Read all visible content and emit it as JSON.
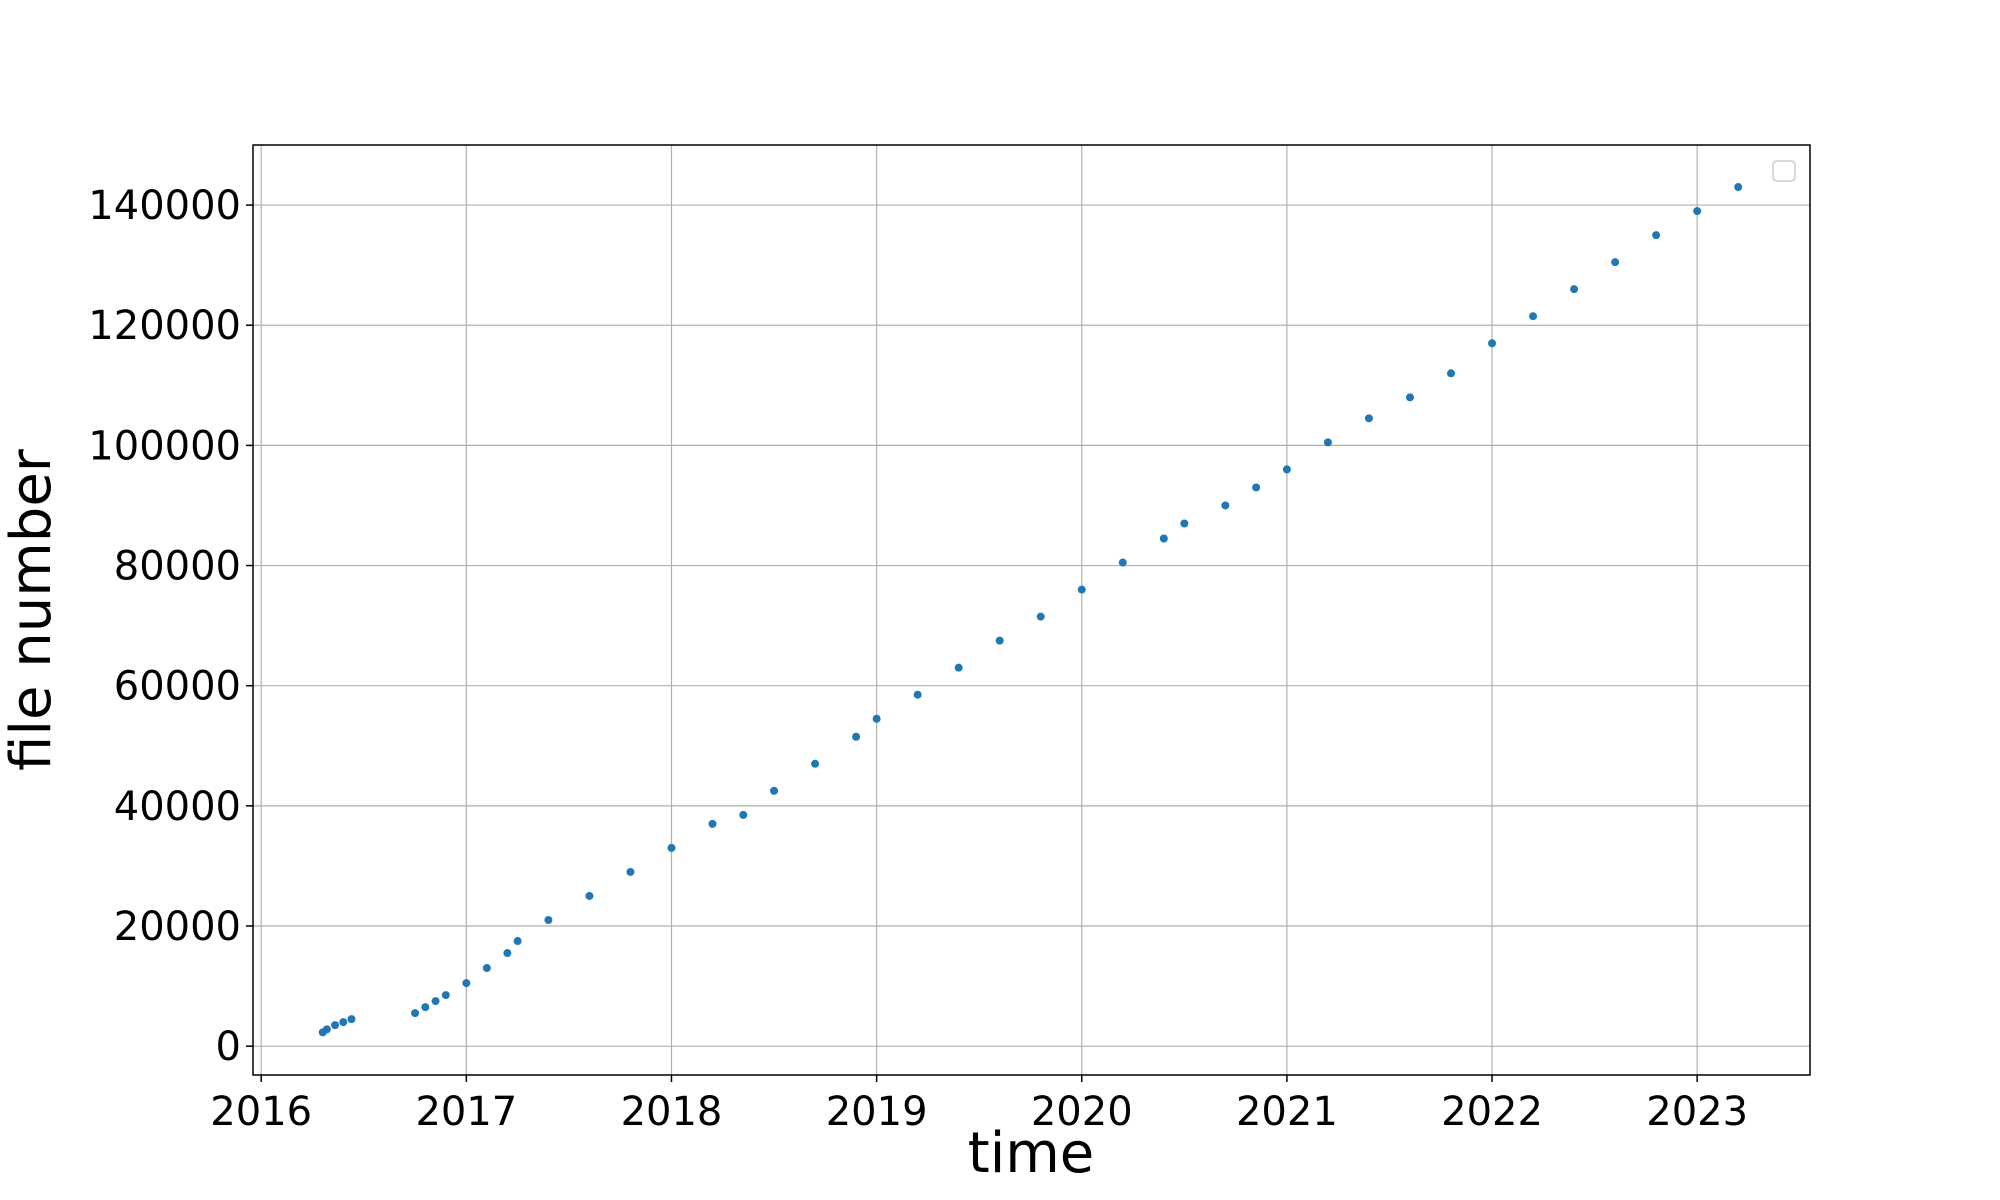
{
  "chart_data": {
    "type": "scatter",
    "title": "",
    "xlabel": "time",
    "ylabel": "file number",
    "x_tick_labels": [
      "2016",
      "2017",
      "2018",
      "2019",
      "2020",
      "2021",
      "2022",
      "2023"
    ],
    "y_tick_labels": [
      "0",
      "20000",
      "40000",
      "60000",
      "80000",
      "100000",
      "120000",
      "140000"
    ],
    "x_ticks": [
      2016,
      2017,
      2018,
      2019,
      2020,
      2021,
      2022,
      2023
    ],
    "y_ticks": [
      0,
      20000,
      40000,
      60000,
      80000,
      100000,
      120000,
      140000
    ],
    "xlim": [
      2015.96,
      2023.55
    ],
    "ylim": [
      -4800,
      150000
    ],
    "grid": true,
    "legend": {
      "present": true,
      "placement": "top-right",
      "entries": []
    },
    "series": [
      {
        "color": "#1f77b4",
        "x": [
          2016.3,
          2016.32,
          2016.36,
          2016.4,
          2016.44,
          2016.75,
          2016.8,
          2016.85,
          2016.9,
          2017.0,
          2017.1,
          2017.2,
          2017.25,
          2017.4,
          2017.6,
          2017.8,
          2018.0,
          2018.2,
          2018.35,
          2018.5,
          2018.7,
          2018.9,
          2019.0,
          2019.2,
          2019.4,
          2019.6,
          2019.8,
          2020.0,
          2020.2,
          2020.4,
          2020.5,
          2020.7,
          2020.85,
          2021.0,
          2021.2,
          2021.4,
          2021.6,
          2021.8,
          2022.0,
          2022.2,
          2022.4,
          2022.6,
          2022.8,
          2023.0,
          2023.2
        ],
        "y": [
          2300,
          2800,
          3500,
          4000,
          4500,
          5500,
          6500,
          7500,
          8500,
          10500,
          13000,
          15500,
          17500,
          21000,
          25000,
          29000,
          33000,
          37000,
          38500,
          42500,
          47000,
          51500,
          54500,
          58500,
          63000,
          67500,
          71500,
          76000,
          80500,
          84500,
          87000,
          90000,
          93000,
          96000,
          100500,
          104500,
          108000,
          112000,
          117000,
          121500,
          126000,
          130500,
          135000,
          139000,
          143000
        ]
      }
    ]
  }
}
